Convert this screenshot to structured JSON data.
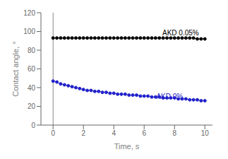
{
  "chart_data": {
    "type": "line",
    "title": "",
    "xlabel": "Time, s",
    "ylabel": "Contact angle, °",
    "xlim": [
      -0.8,
      10.5
    ],
    "ylim": [
      0,
      120
    ],
    "xticks": [
      0,
      2,
      4,
      6,
      8,
      10
    ],
    "yticks": [
      0,
      20,
      40,
      60,
      80,
      100,
      120
    ],
    "grid": false,
    "x": [
      0.0,
      0.25,
      0.5,
      0.75,
      1.0,
      1.25,
      1.5,
      1.75,
      2.0,
      2.25,
      2.5,
      2.75,
      3.0,
      3.25,
      3.5,
      3.75,
      4.0,
      4.25,
      4.5,
      4.75,
      5.0,
      5.25,
      5.5,
      5.75,
      6.0,
      6.25,
      6.5,
      6.75,
      7.0,
      7.25,
      7.5,
      7.75,
      8.0,
      8.25,
      8.5,
      8.75,
      9.0,
      9.25,
      9.5,
      9.75,
      10.0
    ],
    "series": [
      {
        "color": "#000000",
        "marker": "circle",
        "values": [
          93,
          93,
          93,
          93,
          93,
          93,
          93,
          93,
          93,
          93,
          93,
          93,
          93,
          93,
          93,
          93,
          93,
          93,
          93,
          93,
          93,
          93,
          93,
          93,
          93,
          93,
          93,
          93,
          93,
          93,
          93,
          93,
          93,
          93,
          93,
          93,
          93,
          93,
          92,
          92,
          92
        ]
      },
      {
        "color": "#2222cc",
        "marker": "circle",
        "values": [
          47,
          46,
          44,
          43,
          42,
          41,
          40,
          39,
          38,
          37,
          37,
          36,
          36,
          35,
          35,
          34,
          34,
          33,
          33,
          33,
          32,
          32,
          32,
          31,
          31,
          31,
          30,
          30,
          30,
          29,
          29,
          29,
          29,
          28,
          28,
          28,
          27,
          27,
          27,
          26,
          26
        ]
      }
    ],
    "vline": {
      "x": 0,
      "color": "#888888"
    },
    "annotations": [
      {
        "text": "AKD 0.05%",
        "x": 7.2,
        "y": 96,
        "color": "#000000"
      },
      {
        "text": "AKD 0%",
        "x": 6.8,
        "y": 28,
        "color": "#2222cc"
      }
    ]
  }
}
